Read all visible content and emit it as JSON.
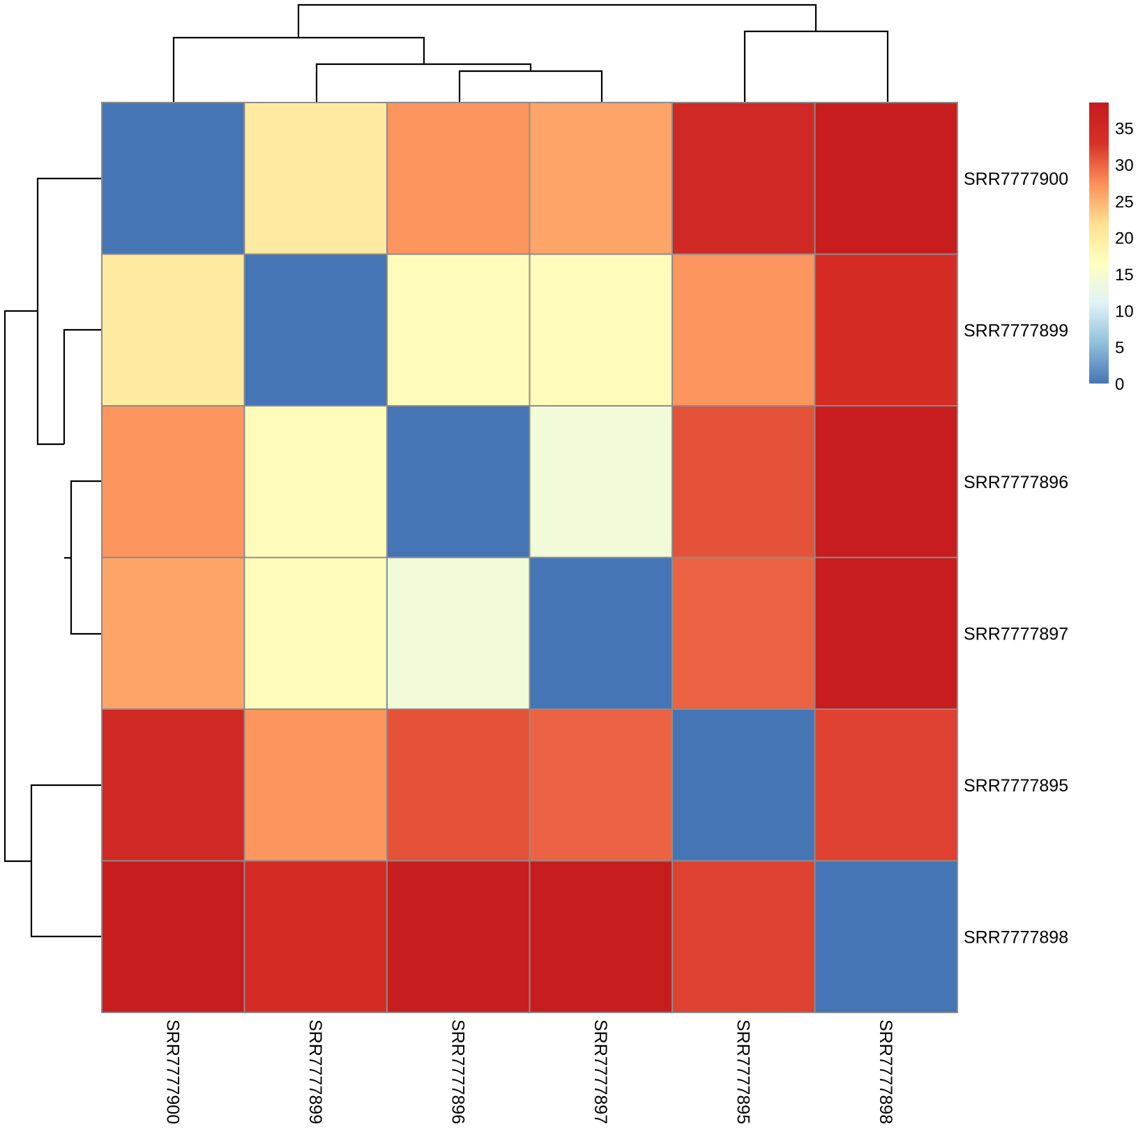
{
  "chart_data": {
    "type": "heatmap",
    "row_labels": [
      "SRR7777900",
      "SRR7777899",
      "SRR7777896",
      "SRR7777897",
      "SRR7777895",
      "SRR7777898"
    ],
    "col_labels": [
      "SRR7777900",
      "SRR7777899",
      "SRR7777896",
      "SRR7777897",
      "SRR7777895",
      "SRR7777898"
    ],
    "values": [
      [
        0,
        20,
        27,
        26,
        35,
        38
      ],
      [
        20,
        0,
        17,
        17,
        27,
        34
      ],
      [
        27,
        17,
        0,
        14,
        31,
        38
      ],
      [
        26,
        17,
        14,
        0,
        30,
        38
      ],
      [
        35,
        27,
        31,
        30,
        0,
        32
      ],
      [
        38,
        34,
        38,
        38,
        32,
        0
      ]
    ],
    "color_scale": {
      "min": 0,
      "max": 38.5,
      "stops": [
        "#4575b4",
        "#91bfdb",
        "#e0f3f8",
        "#ffffbf",
        "#fee090",
        "#fc8d59",
        "#d73027",
        "#c51b1e"
      ],
      "ticks": [
        0,
        5,
        10,
        15,
        20,
        25,
        30,
        35
      ]
    },
    "cell_border_color": "#8c8c8c",
    "legend": "right",
    "dendrograms": [
      "top",
      "left"
    ]
  }
}
